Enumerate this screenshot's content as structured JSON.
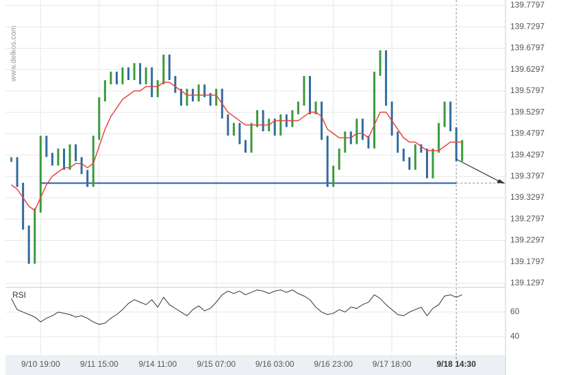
{
  "watermark": "www.delkos.com",
  "chart_data": [
    {
      "type": "price",
      "x": [
        0,
        1,
        2,
        3,
        4,
        5,
        6,
        7,
        8,
        9,
        10,
        11,
        12,
        13,
        14,
        15,
        16,
        17,
        18,
        19,
        20,
        21,
        22,
        23,
        24,
        25,
        26,
        27,
        28,
        29,
        30,
        31,
        32,
        33,
        34,
        35,
        36,
        37,
        38,
        39,
        40,
        41,
        42,
        43,
        44,
        45,
        46,
        47,
        48,
        49,
        50,
        51,
        52,
        53,
        54,
        55,
        56,
        57,
        58,
        59,
        60,
        61,
        62,
        63,
        64,
        65,
        66,
        67,
        68,
        69,
        70,
        71,
        72,
        73,
        74,
        75,
        76,
        77
      ],
      "values": [
        139.42,
        139.36,
        139.26,
        139.18,
        139.3,
        139.47,
        139.43,
        139.41,
        139.44,
        139.4,
        139.45,
        139.42,
        139.39,
        139.36,
        139.47,
        139.56,
        139.6,
        139.62,
        139.6,
        139.63,
        139.61,
        139.64,
        139.6,
        139.63,
        139.57,
        139.6,
        139.66,
        139.61,
        139.58,
        139.55,
        139.58,
        139.56,
        139.59,
        139.57,
        139.55,
        139.58,
        139.52,
        139.48,
        139.5,
        139.46,
        139.44,
        139.5,
        139.53,
        139.49,
        139.51,
        139.48,
        139.52,
        139.5,
        139.53,
        139.55,
        139.61,
        139.53,
        139.55,
        139.47,
        139.36,
        139.4,
        139.44,
        139.48,
        139.46,
        139.51,
        139.47,
        139.45,
        139.62,
        139.67,
        139.55,
        139.48,
        139.44,
        139.42,
        139.4,
        139.45,
        139.44,
        139.38,
        139.44,
        139.5,
        139.55,
        139.49,
        139.42,
        139.46
      ],
      "moving_average": [
        139.36,
        139.35,
        139.33,
        139.31,
        139.3,
        139.33,
        139.36,
        139.38,
        139.39,
        139.4,
        139.4,
        139.41,
        139.41,
        139.4,
        139.41,
        139.45,
        139.49,
        139.52,
        139.54,
        139.56,
        139.57,
        139.58,
        139.58,
        139.59,
        139.59,
        139.59,
        139.6,
        139.6,
        139.59,
        139.58,
        139.57,
        139.57,
        139.57,
        139.57,
        139.57,
        139.57,
        139.55,
        139.53,
        139.52,
        139.51,
        139.5,
        139.5,
        139.5,
        139.5,
        139.5,
        139.51,
        139.51,
        139.51,
        139.51,
        139.51,
        139.52,
        139.53,
        139.53,
        139.52,
        139.49,
        139.48,
        139.47,
        139.47,
        139.47,
        139.48,
        139.48,
        139.47,
        139.5,
        139.53,
        139.53,
        139.51,
        139.49,
        139.47,
        139.46,
        139.46,
        139.45,
        139.44,
        139.44,
        139.44,
        139.45,
        139.46,
        139.46,
        139.46
      ],
      "up_color": "#3a9a3a",
      "down_color": "#2f6b9e",
      "ma_color": "#e8443a",
      "support_level": 139.364,
      "support_color": "#4a78c0",
      "xlim": [
        -1,
        84.4
      ],
      "xticks": [
        {
          "value": 5,
          "label": "9/10 19:00"
        },
        {
          "value": 15,
          "label": "9/11 15:00"
        },
        {
          "value": 25,
          "label": "9/14 11:00"
        },
        {
          "value": 35,
          "label": "9/15 07:00"
        },
        {
          "value": 45,
          "label": "9/16 03:00"
        },
        {
          "value": 55,
          "label": "9/16 23:00"
        },
        {
          "value": 65,
          "label": "9/17 18:00"
        },
        {
          "value": 76,
          "label": "9/18 14:30"
        }
      ],
      "ylim": [
        139.12,
        139.7925
      ],
      "yticks": [
        139.1297,
        139.1797,
        139.2297,
        139.2797,
        139.3297,
        139.3797,
        139.4297,
        139.4797,
        139.5297,
        139.5797,
        139.6297,
        139.6797,
        139.7297,
        139.7797
      ],
      "grid": true
    },
    {
      "type": "line",
      "label": "RSI",
      "values": [
        71,
        62,
        60,
        58,
        56,
        52,
        55,
        57,
        60,
        59,
        58,
        56,
        57,
        55,
        52,
        50,
        51,
        55,
        58,
        62,
        67,
        70,
        68,
        66,
        70,
        64,
        72,
        66,
        63,
        60,
        57,
        62,
        65,
        61,
        63,
        68,
        74,
        77,
        75,
        77,
        74,
        76,
        78,
        77,
        75,
        77,
        78,
        76,
        78,
        75,
        73,
        70,
        64,
        60,
        58,
        59,
        62,
        60,
        64,
        63,
        66,
        68,
        74,
        71,
        66,
        62,
        58,
        57,
        60,
        62,
        64,
        57,
        63,
        66,
        73,
        74,
        72,
        74
      ],
      "color": "#333333",
      "ylim": [
        25.6,
        80
      ],
      "yticks": [
        40,
        60
      ],
      "grid": true
    }
  ]
}
